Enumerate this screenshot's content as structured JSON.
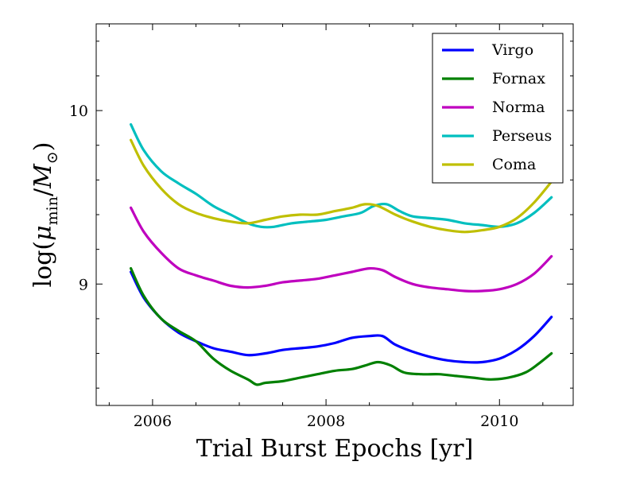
{
  "chart_data": {
    "type": "line",
    "title": "",
    "xlabel": "Trial Burst Epochs [yr]",
    "ylabel_parts": {
      "pre": "log(",
      "mu": "μ",
      "sub": "min",
      "slash": "/",
      "m": "M",
      "sun": "⊙",
      "post": ")"
    },
    "xlim": [
      2005.35,
      2010.85
    ],
    "ylim": [
      8.3,
      10.5
    ],
    "x_ticks": [
      2006,
      2008,
      2010
    ],
    "x_tick_labels": [
      "2006",
      "2008",
      "2010"
    ],
    "x_minor_ticks": [
      2005.5,
      2006.5,
      2007,
      2007.5,
      2008.5,
      2009,
      2009.5,
      2010.5
    ],
    "y_ticks": [
      9,
      10
    ],
    "y_tick_labels": [
      "9",
      "10"
    ],
    "y_minor_ticks": [
      8.4,
      8.6,
      8.8,
      9.2,
      9.4,
      9.6,
      9.8,
      10.2,
      10.4
    ],
    "legend_position": "top-right",
    "series": [
      {
        "name": "Virgo",
        "color": "#0000ff",
        "x": [
          2005.75,
          2005.9,
          2006.1,
          2006.3,
          2006.5,
          2006.7,
          2006.9,
          2007.1,
          2007.3,
          2007.5,
          2007.7,
          2007.9,
          2008.1,
          2008.3,
          2008.5,
          2008.65,
          2008.8,
          2009.0,
          2009.2,
          2009.4,
          2009.6,
          2009.8,
          2010.0,
          2010.2,
          2010.4,
          2010.6
        ],
        "values": [
          9.07,
          8.92,
          8.8,
          8.72,
          8.67,
          8.63,
          8.61,
          8.59,
          8.6,
          8.62,
          8.63,
          8.64,
          8.66,
          8.69,
          8.7,
          8.7,
          8.65,
          8.61,
          8.58,
          8.56,
          8.55,
          8.55,
          8.57,
          8.62,
          8.7,
          8.81
        ]
      },
      {
        "name": "Fornax",
        "color": "#008000",
        "x": [
          2005.75,
          2005.9,
          2006.1,
          2006.3,
          2006.5,
          2006.7,
          2006.9,
          2007.1,
          2007.2,
          2007.3,
          2007.5,
          2007.7,
          2007.9,
          2008.1,
          2008.3,
          2008.45,
          2008.6,
          2008.75,
          2008.9,
          2009.1,
          2009.3,
          2009.5,
          2009.7,
          2009.9,
          2010.1,
          2010.3,
          2010.45,
          2010.6
        ],
        "values": [
          9.09,
          8.93,
          8.8,
          8.73,
          8.67,
          8.57,
          8.5,
          8.45,
          8.42,
          8.43,
          8.44,
          8.46,
          8.48,
          8.5,
          8.51,
          8.53,
          8.55,
          8.53,
          8.49,
          8.48,
          8.48,
          8.47,
          8.46,
          8.45,
          8.46,
          8.49,
          8.54,
          8.6
        ]
      },
      {
        "name": "Norma",
        "color": "#bf00bf",
        "x": [
          2005.75,
          2005.9,
          2006.1,
          2006.3,
          2006.5,
          2006.7,
          2006.9,
          2007.1,
          2007.3,
          2007.5,
          2007.7,
          2007.9,
          2008.1,
          2008.3,
          2008.5,
          2008.65,
          2008.8,
          2009.0,
          2009.2,
          2009.4,
          2009.6,
          2009.8,
          2010.0,
          2010.2,
          2010.4,
          2010.6
        ],
        "values": [
          9.44,
          9.3,
          9.18,
          9.09,
          9.05,
          9.02,
          8.99,
          8.98,
          8.99,
          9.01,
          9.02,
          9.03,
          9.05,
          9.07,
          9.09,
          9.08,
          9.04,
          9.0,
          8.98,
          8.97,
          8.96,
          8.96,
          8.97,
          9.0,
          9.06,
          9.16
        ]
      },
      {
        "name": "Perseus",
        "color": "#00bfbf",
        "x": [
          2005.75,
          2005.9,
          2006.1,
          2006.3,
          2006.5,
          2006.7,
          2006.9,
          2007.1,
          2007.25,
          2007.4,
          2007.6,
          2007.8,
          2008.0,
          2008.2,
          2008.4,
          2008.55,
          2008.7,
          2008.85,
          2009.0,
          2009.2,
          2009.4,
          2009.6,
          2009.8,
          2010.0,
          2010.2,
          2010.4,
          2010.6
        ],
        "values": [
          9.92,
          9.77,
          9.65,
          9.58,
          9.52,
          9.45,
          9.4,
          9.35,
          9.33,
          9.33,
          9.35,
          9.36,
          9.37,
          9.39,
          9.41,
          9.45,
          9.46,
          9.42,
          9.39,
          9.38,
          9.37,
          9.35,
          9.34,
          9.33,
          9.35,
          9.41,
          9.5
        ]
      },
      {
        "name": "Coma",
        "color": "#bfbf00",
        "x": [
          2005.75,
          2005.9,
          2006.1,
          2006.3,
          2006.5,
          2006.7,
          2006.9,
          2007.1,
          2007.3,
          2007.5,
          2007.7,
          2007.9,
          2008.1,
          2008.3,
          2008.45,
          2008.6,
          2008.8,
          2009.0,
          2009.2,
          2009.4,
          2009.6,
          2009.8,
          2010.0,
          2010.2,
          2010.4,
          2010.6
        ],
        "values": [
          9.83,
          9.68,
          9.55,
          9.46,
          9.41,
          9.38,
          9.36,
          9.35,
          9.37,
          9.39,
          9.4,
          9.4,
          9.42,
          9.44,
          9.46,
          9.45,
          9.4,
          9.36,
          9.33,
          9.31,
          9.3,
          9.31,
          9.33,
          9.38,
          9.47,
          9.59
        ]
      }
    ]
  }
}
